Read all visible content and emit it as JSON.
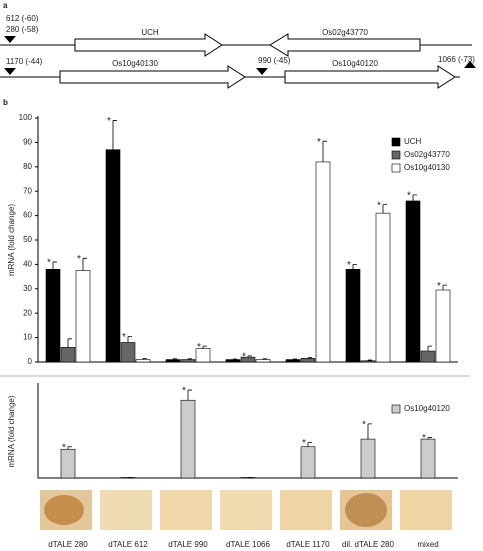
{
  "panel_labels": [
    "a",
    "b"
  ],
  "diagram": {
    "sites": [
      "612 (-60)",
      "280 (-58)",
      "1066 (-73)",
      "1170 (-44)",
      "990 (-45)"
    ],
    "genes": [
      "UCH",
      "Os02g43770",
      "Os10g40130",
      "Os10g40120"
    ]
  },
  "chart_data": [
    {
      "type": "bar",
      "y_label": "mRNA (fold change)",
      "categories": [
        "dTALE 280",
        "dTALE 612",
        "dTALE 990",
        "dTALE 1066",
        "dTALE 1170",
        "dil. dTALE 280",
        "mixed"
      ],
      "ylim": [
        0,
        100
      ],
      "yticks": [
        0,
        10,
        20,
        30,
        40,
        50,
        60,
        70,
        80,
        90,
        100
      ],
      "legend": "top-right",
      "series": [
        {
          "name": "UCH",
          "color": "#000000",
          "values": [
            38,
            87,
            1,
            1,
            1,
            38,
            66
          ],
          "errors": [
            3,
            12,
            0.3,
            0.2,
            0.2,
            2,
            2.5
          ],
          "annotations": [
            "*",
            "*",
            null,
            null,
            null,
            "*",
            "*"
          ]
        },
        {
          "name": "Os02g43770",
          "color": "#666666",
          "values": [
            6,
            8,
            1,
            2,
            1.5,
            0.5,
            4.5
          ],
          "errors": [
            3.5,
            2.5,
            0.3,
            0.5,
            0.3,
            0.3,
            2
          ],
          "annotations": [
            null,
            "*",
            null,
            "*",
            null,
            null,
            null
          ]
        },
        {
          "name": "Os10g40130",
          "color": "#ffffff",
          "values": [
            37.5,
            1,
            5.5,
            1,
            82,
            61,
            29.5
          ],
          "errors": [
            5,
            0.5,
            1,
            0.3,
            8.5,
            3.5,
            2
          ],
          "annotations": [
            "*",
            null,
            "*",
            null,
            "*",
            "*",
            "*"
          ]
        }
      ]
    },
    {
      "type": "bar",
      "y_label": "mRNA (fold change)",
      "ylim": [
        0,
        550
      ],
      "legend": "top-right",
      "series": [
        {
          "name": "Os10g40120",
          "color": "#cccccc",
          "values": [
            170,
            3,
            460,
            3,
            185,
            230,
            230
          ],
          "errors": [
            15,
            0,
            60,
            0,
            25,
            90,
            10
          ],
          "annotations": [
            "*",
            null,
            "*",
            null,
            "*",
            "*",
            "*"
          ]
        }
      ]
    }
  ]
}
